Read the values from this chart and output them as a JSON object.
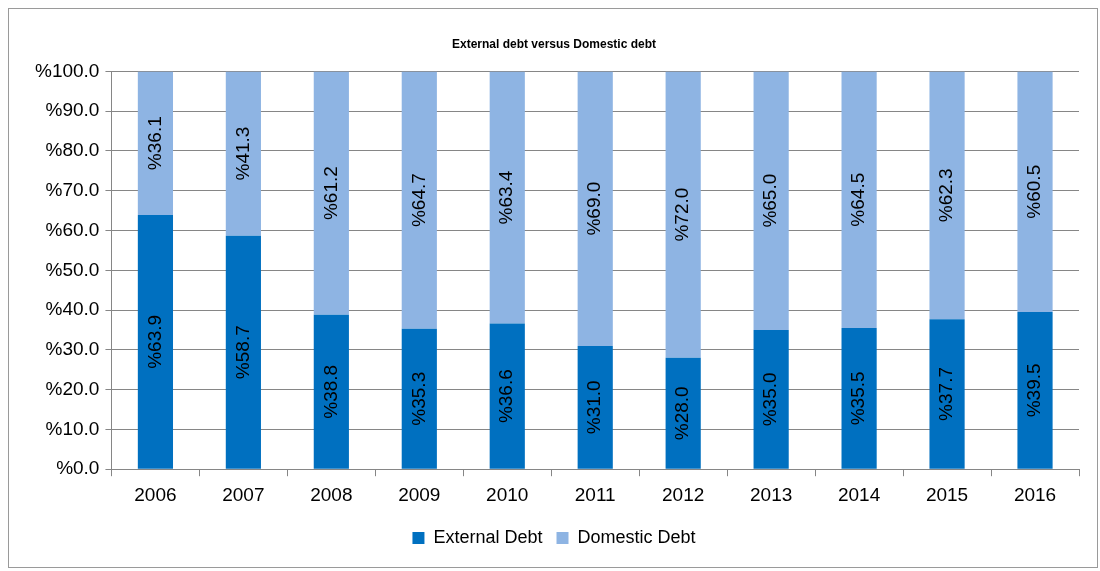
{
  "chart_data": {
    "type": "bar",
    "title": "External debt versus Domestic debt",
    "stacked": true,
    "categories": [
      "2006",
      "2007",
      "2008",
      "2009",
      "2010",
      "2011",
      "2012",
      "2013",
      "2014",
      "2015",
      "2016"
    ],
    "series": [
      {
        "name": "External Debt",
        "color": "#0070c0",
        "values": [
          63.9,
          58.7,
          38.8,
          35.3,
          36.6,
          31.0,
          28.0,
          35.0,
          35.5,
          37.7,
          39.5
        ],
        "value_labels": [
          "%63.9",
          "%58.7",
          "%38.8",
          "%35.3",
          "%36.6",
          "%31.0",
          "%28.0",
          "%35.0",
          "%35.5",
          "%37.7",
          "%39.5"
        ]
      },
      {
        "name": "Domestic Debt",
        "color": "#8eb4e3",
        "values": [
          36.1,
          41.3,
          61.2,
          64.7,
          63.4,
          69.0,
          72.0,
          65.0,
          64.5,
          62.3,
          60.5
        ],
        "value_labels": [
          "%36.1",
          "%41.3",
          "%61.2",
          "%64.7",
          "%63.4",
          "%69.0",
          "%72.0",
          "%65.0",
          "%64.5",
          "%62.3",
          "%60.5"
        ]
      }
    ],
    "ylim": [
      0,
      100
    ],
    "yticks": [
      {
        "value": 0,
        "label": "%0.0"
      },
      {
        "value": 10,
        "label": "%10.0"
      },
      {
        "value": 20,
        "label": "%20.0"
      },
      {
        "value": 30,
        "label": "%30.0"
      },
      {
        "value": 40,
        "label": "%40.0"
      },
      {
        "value": 50,
        "label": "%50.0"
      },
      {
        "value": 60,
        "label": "%60.0"
      },
      {
        "value": 70,
        "label": "%70.0"
      },
      {
        "value": 80,
        "label": "%80.0"
      },
      {
        "value": 90,
        "label": "%90.0"
      },
      {
        "value": 100,
        "label": "%100.0"
      }
    ],
    "grid": "y",
    "legend": "bottom"
  }
}
